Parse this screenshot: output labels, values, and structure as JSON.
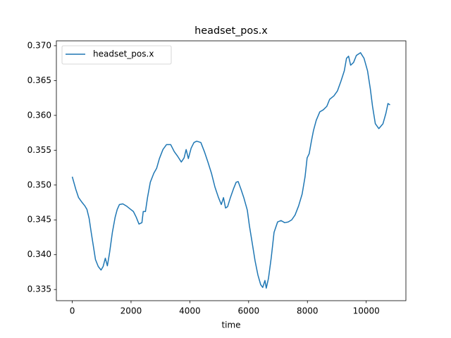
{
  "chart_data": {
    "type": "line",
    "title": "headset_pos.x",
    "x_label": "time",
    "x": [
      0,
      120,
      215,
      335,
      430,
      500,
      575,
      645,
      720,
      790,
      885,
      980,
      1050,
      1125,
      1195,
      1270,
      1365,
      1460,
      1530,
      1605,
      1720,
      1840,
      1960,
      2080,
      2175,
      2270,
      2370,
      2415,
      2490,
      2560,
      2655,
      2775,
      2870,
      2965,
      3085,
      3205,
      3350,
      3470,
      3590,
      3710,
      3805,
      3875,
      3950,
      4045,
      4140,
      4235,
      4375,
      4495,
      4615,
      4735,
      4855,
      4975,
      5070,
      5145,
      5215,
      5285,
      5380,
      5480,
      5575,
      5645,
      5740,
      5835,
      5955,
      6025,
      6125,
      6220,
      6315,
      6410,
      6480,
      6555,
      6600,
      6675,
      6770,
      6865,
      6985,
      7105,
      7225,
      7345,
      7465,
      7580,
      7700,
      7820,
      7920,
      7990,
      8060,
      8135,
      8205,
      8300,
      8420,
      8540,
      8660,
      8755,
      8900,
      9020,
      9140,
      9255,
      9330,
      9400,
      9470,
      9570,
      9665,
      9805,
      9925,
      10045,
      10140,
      10215,
      10310,
      10430,
      10570,
      10670,
      10740,
      10810
    ],
    "series": [
      {
        "name": "headset_pos.x",
        "color": "#1f77b4",
        "values": [
          0.3512,
          0.3494,
          0.3482,
          0.3475,
          0.347,
          0.3465,
          0.3452,
          0.3432,
          0.3412,
          0.3393,
          0.3383,
          0.3378,
          0.3383,
          0.3395,
          0.3384,
          0.3403,
          0.3432,
          0.3454,
          0.3465,
          0.3472,
          0.3473,
          0.347,
          0.3466,
          0.3462,
          0.3454,
          0.3444,
          0.3446,
          0.3462,
          0.3462,
          0.3482,
          0.3504,
          0.3517,
          0.3524,
          0.3538,
          0.3551,
          0.3558,
          0.3558,
          0.3548,
          0.3541,
          0.3533,
          0.3539,
          0.3551,
          0.3538,
          0.3553,
          0.3561,
          0.3563,
          0.3561,
          0.3548,
          0.3533,
          0.3517,
          0.3497,
          0.3482,
          0.3472,
          0.3482,
          0.3467,
          0.3469,
          0.3482,
          0.3494,
          0.3504,
          0.3505,
          0.3494,
          0.3482,
          0.3464,
          0.3442,
          0.3416,
          0.3391,
          0.3371,
          0.3357,
          0.3353,
          0.3363,
          0.3352,
          0.3366,
          0.3396,
          0.3432,
          0.3447,
          0.3449,
          0.3446,
          0.3447,
          0.345,
          0.3457,
          0.347,
          0.3487,
          0.3512,
          0.3539,
          0.3545,
          0.3563,
          0.3578,
          0.3593,
          0.3605,
          0.3608,
          0.3613,
          0.3623,
          0.3628,
          0.3635,
          0.3649,
          0.3664,
          0.3682,
          0.3685,
          0.3672,
          0.3676,
          0.3686,
          0.369,
          0.3682,
          0.3664,
          0.3638,
          0.3613,
          0.3588,
          0.3581,
          0.3588,
          0.3603,
          0.3617,
          0.3615
        ]
      }
    ],
    "xlim": [
      -540,
      11350
    ],
    "ylim": [
      0.3334,
      0.3707
    ],
    "xticks": [
      0,
      2000,
      4000,
      6000,
      8000,
      10000
    ],
    "yticks": [
      0.335,
      {
        "value": 0.34,
        "label": "0.340"
      },
      0.345,
      {
        "value": 0.35,
        "label": "0.350"
      },
      0.355,
      {
        "value": 0.36,
        "label": "0.360"
      },
      0.365,
      {
        "value": 0.37,
        "label": "0.370"
      }
    ],
    "legend": "upper left"
  }
}
